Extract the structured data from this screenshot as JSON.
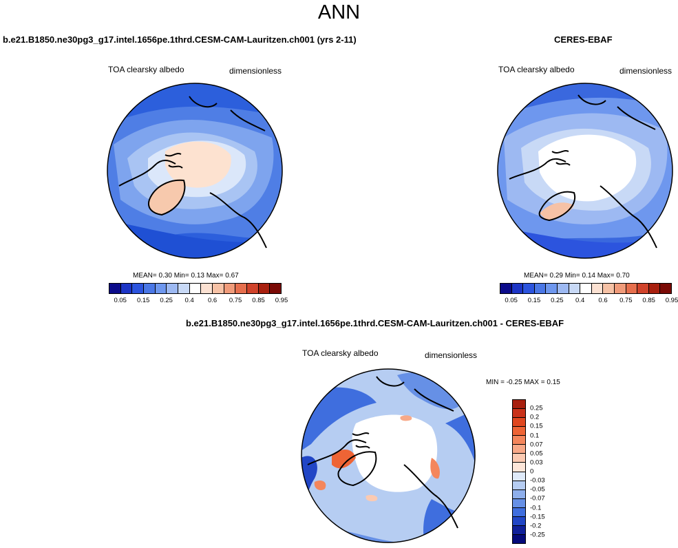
{
  "title": "ANN",
  "panels": [
    {
      "case_title": "b.e21.B1850.ne30pg3_g17.intel.1656pe.1thrd.CESM-CAM-Lauritzen.ch001 (yrs 2-11)",
      "variable": "TOA clearsky albedo",
      "units": "dimensionless",
      "stats": "MEAN=   0.30  Min=   0.13  Max=   0.67"
    },
    {
      "case_title": "CERES-EBAF",
      "variable": "TOA clearsky albedo",
      "units": "dimensionless",
      "stats": "MEAN=   0.29  Min=   0.14  Max=   0.70"
    },
    {
      "case_title": "b.e21.B1850.ne30pg3_g17.intel.1656pe.1thrd.CESM-CAM-Lauritzen.ch001 - CERES-EBAF",
      "variable": "TOA clearsky albedo",
      "units": "dimensionless",
      "stats": "MIN =  -0.25 MAX =   0.15"
    }
  ],
  "colorbar_top": {
    "ticks": [
      "0.05",
      "0.15",
      "0.25",
      "0.4",
      "0.6",
      "0.75",
      "0.85",
      "0.95"
    ],
    "colors": [
      "#0b0b8a",
      "#1d35c6",
      "#2c54de",
      "#4a77e6",
      "#6e97ee",
      "#9db9f2",
      "#c8d9f6",
      "#ffffff",
      "#fbe1d2",
      "#f6c2a6",
      "#f09b7a",
      "#e66f4d",
      "#d0432b",
      "#a8200f",
      "#7a0a06"
    ]
  },
  "colorbar_diff": {
    "labels": [
      "0.25",
      "0.2",
      "0.15",
      "0.1",
      "0.07",
      "0.05",
      "0.03",
      "0",
      "-0.03",
      "-0.05",
      "-0.07",
      "-0.1",
      "-0.15",
      "-0.2",
      "-0.25"
    ],
    "colors": [
      "#a8200f",
      "#c9321a",
      "#e0471f",
      "#ee6435",
      "#f4865c",
      "#f8a988",
      "#fbcab2",
      "#fde6d9",
      "#dfeaf9",
      "#b6cdf2",
      "#8eafec",
      "#6690e6",
      "#3f6ede",
      "#2146c6",
      "#10209a",
      "#050a7a"
    ]
  }
}
